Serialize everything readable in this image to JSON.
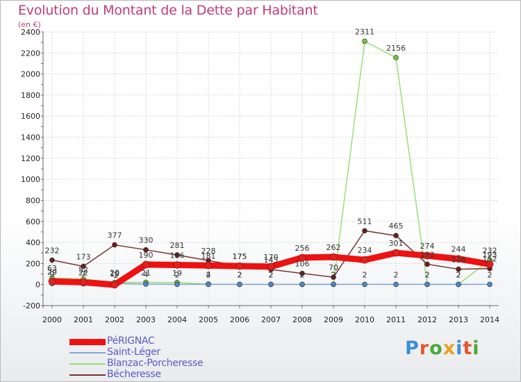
{
  "title": "Evolution du Montant de la Dette par Habitant",
  "subtitle": "(en €)",
  "logo": {
    "text": "Proxiti",
    "colors": [
      "#3a8fd6",
      "#e8562a",
      "#4aa83c",
      "#e8a21f",
      "#3a8fd6",
      "#e8562a",
      "#4aa83c"
    ]
  },
  "chart_data": {
    "type": "line",
    "x": [
      "2000",
      "2001",
      "2002",
      "2003",
      "2004",
      "2005",
      "2006",
      "2007",
      "2008",
      "2009",
      "2010",
      "2011",
      "2012",
      "2013",
      "2014"
    ],
    "ylim": [
      -200,
      2400
    ],
    "yticks": [
      "-200",
      "0",
      "200",
      "400",
      "600",
      "800",
      "1000",
      "1200",
      "1400",
      "1600",
      "1800",
      "2000",
      "2200",
      "2400"
    ],
    "grid": true,
    "legend_position": "bottom-left",
    "series": [
      {
        "name": "PéRIGNAC",
        "color": "#ee1111",
        "marker": "#dd2222",
        "width": 9,
        "values": [
          29,
          22,
          -2,
          190,
          186,
          181,
          175,
          170,
          256,
          262,
          234,
          301,
          274,
          244,
          193
        ],
        "labels": [
          "29",
          "22",
          "-2",
          "190",
          "186",
          "181",
          "175",
          "170",
          "256",
          "262",
          "234",
          "301",
          "274",
          "244",
          "193"
        ]
      },
      {
        "name": "Saint-Léger",
        "color": "#7ea6d2",
        "marker": "#4a88c8",
        "width": 1.5,
        "values": [
          9,
          7,
          10,
          4,
          2,
          2,
          2,
          2,
          2,
          2,
          2,
          2,
          2,
          2,
          2
        ],
        "labels": [
          "9",
          "7",
          "10",
          "4",
          "2",
          "2",
          "2",
          "2",
          "2",
          "2",
          "2",
          "2",
          "2",
          "2",
          "2"
        ]
      },
      {
        "name": "Blanzac-Porcheresse",
        "color": "#99dd77",
        "marker": "#6fc43a",
        "width": 1.5,
        "values": [
          63,
          52,
          20,
          21,
          19,
          4,
          2,
          2,
          2,
          2,
          2311,
          2156,
          2,
          2,
          232
        ],
        "labels": [
          "63",
          "52",
          "20",
          "21",
          "19",
          "4",
          "2",
          "2",
          "2",
          "2",
          "2311",
          "2156",
          "2",
          "2",
          "232"
        ]
      },
      {
        "name": "Bécheresse",
        "color": "#773333",
        "marker": "#6a1f1f",
        "width": 1.5,
        "values": [
          232,
          173,
          377,
          330,
          281,
          228,
          175,
          143,
          106,
          70,
          511,
          465,
          193,
          146,
          152
        ],
        "labels": [
          "232",
          "173",
          "377",
          "330",
          "281",
          "228",
          "175",
          "143",
          "106",
          "70",
          "511",
          "465",
          "193",
          "146",
          "152"
        ]
      }
    ]
  }
}
